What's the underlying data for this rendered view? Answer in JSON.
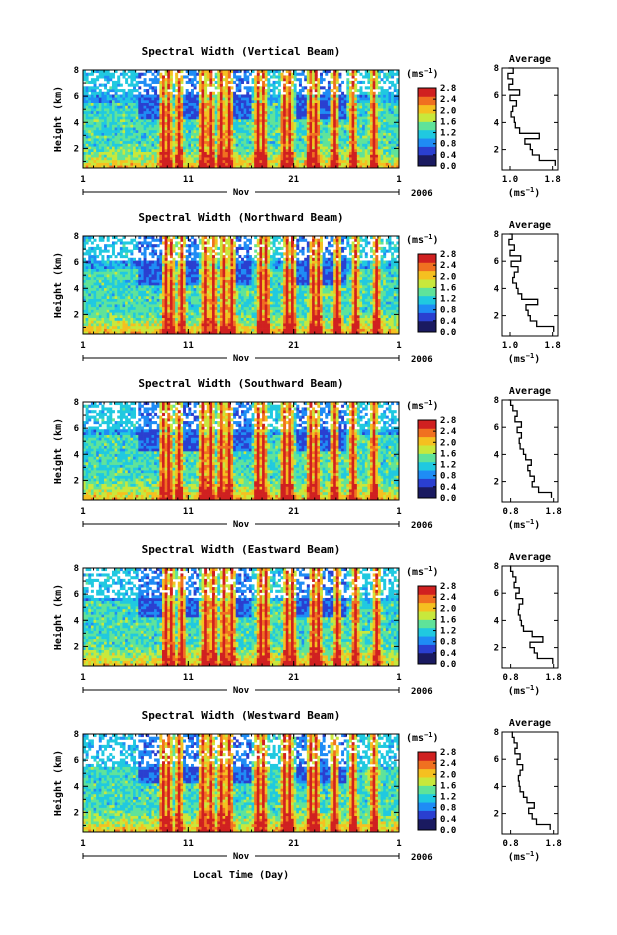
{
  "figure": {
    "bottom_xlabel": "Local Time (Day)",
    "month_label": "Nov",
    "year_label": "2006",
    "colorbar_unit": "(ms",
    "colorbar_unit_exp": "−1",
    "avg_title": "Average",
    "avg_xlabel": "(ms",
    "avg_xlabel_exp": "−1"
  },
  "chart_data": [
    {
      "type": "heatmap",
      "title": "Spectral Width (Vertical Beam)",
      "ylabel": "Height (km)",
      "x_ticks": [
        "1",
        "11",
        "21",
        "1"
      ],
      "y_ticks": [
        2,
        4,
        6,
        8
      ],
      "ylim": [
        0.5,
        8
      ],
      "colorbar_ticks": [
        "0.0",
        "0.4",
        "0.8",
        "1.2",
        "1.6",
        "2.0",
        "2.4",
        "2.8"
      ],
      "colormap": [
        "#1a1a60",
        "#2a3fd0",
        "#1f8cf5",
        "#20c9e0",
        "#5fe39a",
        "#c8e83c",
        "#f5c020",
        "#f07020",
        "#d02020"
      ],
      "profile": {
        "x_ticks": [
          "1.0",
          "1.8"
        ],
        "xlim": [
          0.85,
          1.9
        ],
        "height": [
          0.8,
          1.2,
          1.6,
          2.0,
          2.4,
          2.8,
          3.2,
          3.6,
          4.0,
          4.4,
          4.8,
          5.2,
          5.6,
          6.0,
          6.4,
          6.8,
          7.2,
          7.6,
          8.0
        ],
        "width": [
          1.85,
          1.55,
          1.42,
          1.38,
          1.28,
          1.55,
          1.18,
          1.1,
          1.08,
          1.02,
          1.05,
          1.12,
          1.0,
          1.18,
          0.98,
          1.05,
          0.96,
          1.06,
          0.97
        ]
      }
    },
    {
      "type": "heatmap",
      "title": "Spectral Width (Northward Beam)",
      "ylabel": "Height (km)",
      "x_ticks": [
        "1",
        "11",
        "21",
        "1"
      ],
      "y_ticks": [
        2,
        4,
        6,
        8
      ],
      "ylim": [
        0.5,
        8
      ],
      "colorbar_ticks": [
        "0.0",
        "0.4",
        "0.8",
        "1.2",
        "1.6",
        "2.0",
        "2.4",
        "2.8"
      ],
      "colormap": [
        "#1a1a60",
        "#2a3fd0",
        "#1f8cf5",
        "#20c9e0",
        "#5fe39a",
        "#c8e83c",
        "#f5c020",
        "#f07020",
        "#d02020"
      ],
      "profile": {
        "x_ticks": [
          "1.0",
          "1.8"
        ],
        "xlim": [
          0.85,
          1.9
        ],
        "height": [
          0.8,
          1.2,
          1.6,
          2.0,
          2.4,
          2.8,
          3.2,
          3.6,
          4.0,
          4.4,
          4.8,
          5.2,
          5.6,
          6.0,
          6.4,
          6.8,
          7.2,
          7.6,
          8.0
        ],
        "width": [
          1.82,
          1.5,
          1.38,
          1.34,
          1.3,
          1.52,
          1.22,
          1.15,
          1.12,
          1.05,
          1.08,
          1.15,
          1.02,
          1.2,
          1.0,
          1.08,
          0.98,
          1.04,
          0.99
        ]
      }
    },
    {
      "type": "heatmap",
      "title": "Spectral Width (Southward Beam)",
      "ylabel": "Height (km)",
      "x_ticks": [
        "1",
        "11",
        "21",
        "1"
      ],
      "y_ticks": [
        2,
        4,
        6,
        8
      ],
      "ylim": [
        0.5,
        8
      ],
      "colorbar_ticks": [
        "0.0",
        "0.4",
        "0.8",
        "1.2",
        "1.6",
        "2.0",
        "2.4",
        "2.8"
      ],
      "colormap": [
        "#1a1a60",
        "#2a3fd0",
        "#1f8cf5",
        "#20c9e0",
        "#5fe39a",
        "#c8e83c",
        "#f5c020",
        "#f07020",
        "#d02020"
      ],
      "profile": {
        "x_ticks": [
          "0.8",
          "1.8"
        ],
        "xlim": [
          0.6,
          1.9
        ],
        "height": [
          0.8,
          1.2,
          1.6,
          2.0,
          2.4,
          2.8,
          3.2,
          3.6,
          4.0,
          4.4,
          4.8,
          5.2,
          5.6,
          6.0,
          6.4,
          6.8,
          7.2,
          7.6,
          8.0
        ],
        "width": [
          1.75,
          1.45,
          1.3,
          1.35,
          1.25,
          1.2,
          1.28,
          1.15,
          1.1,
          1.02,
          1.0,
          1.05,
          0.95,
          1.05,
          0.9,
          0.95,
          0.85,
          0.8,
          0.75
        ]
      }
    },
    {
      "type": "heatmap",
      "title": "Spectral Width (Eastward Beam)",
      "ylabel": "Height (km)",
      "x_ticks": [
        "1",
        "11",
        "21",
        "1"
      ],
      "y_ticks": [
        2,
        4,
        6,
        8
      ],
      "ylim": [
        0.5,
        8
      ],
      "colorbar_ticks": [
        "0.0",
        "0.4",
        "0.8",
        "1.2",
        "1.6",
        "2.0",
        "2.4",
        "2.8"
      ],
      "colormap": [
        "#1a1a60",
        "#2a3fd0",
        "#1f8cf5",
        "#20c9e0",
        "#5fe39a",
        "#c8e83c",
        "#f5c020",
        "#f07020",
        "#d02020"
      ],
      "profile": {
        "x_ticks": [
          "0.8",
          "1.8"
        ],
        "xlim": [
          0.6,
          1.9
        ],
        "height": [
          0.8,
          1.2,
          1.6,
          2.0,
          2.4,
          2.8,
          3.2,
          3.6,
          4.0,
          4.4,
          4.8,
          5.2,
          5.6,
          6.0,
          6.4,
          6.8,
          7.2,
          7.6,
          8.0
        ],
        "width": [
          1.78,
          1.42,
          1.35,
          1.25,
          1.55,
          1.3,
          1.1,
          1.05,
          1.02,
          0.98,
          1.0,
          1.08,
          0.92,
          1.0,
          0.88,
          0.92,
          0.85,
          0.8,
          0.78
        ]
      }
    },
    {
      "type": "heatmap",
      "title": "Spectral Width (Westward Beam)",
      "ylabel": "Height (km)",
      "x_ticks": [
        "1",
        "11",
        "21",
        "1"
      ],
      "y_ticks": [
        2,
        4,
        6,
        8
      ],
      "ylim": [
        0.5,
        8
      ],
      "colorbar_ticks": [
        "0.0",
        "0.4",
        "0.8",
        "1.2",
        "1.6",
        "2.0",
        "2.4",
        "2.8"
      ],
      "colormap": [
        "#1a1a60",
        "#2a3fd0",
        "#1f8cf5",
        "#20c9e0",
        "#5fe39a",
        "#c8e83c",
        "#f5c020",
        "#f07020",
        "#d02020"
      ],
      "profile": {
        "x_ticks": [
          "0.8",
          "1.8"
        ],
        "xlim": [
          0.6,
          1.9
        ],
        "height": [
          0.8,
          1.2,
          1.6,
          2.0,
          2.4,
          2.8,
          3.2,
          3.6,
          4.0,
          4.4,
          4.8,
          5.2,
          5.6,
          6.0,
          6.4,
          6.8,
          7.2,
          7.6,
          8.0
        ],
        "width": [
          1.72,
          1.4,
          1.3,
          1.22,
          1.35,
          1.18,
          1.1,
          1.02,
          1.0,
          0.98,
          1.02,
          1.08,
          0.95,
          1.02,
          0.9,
          0.95,
          0.88,
          0.84,
          0.82
        ]
      }
    }
  ]
}
